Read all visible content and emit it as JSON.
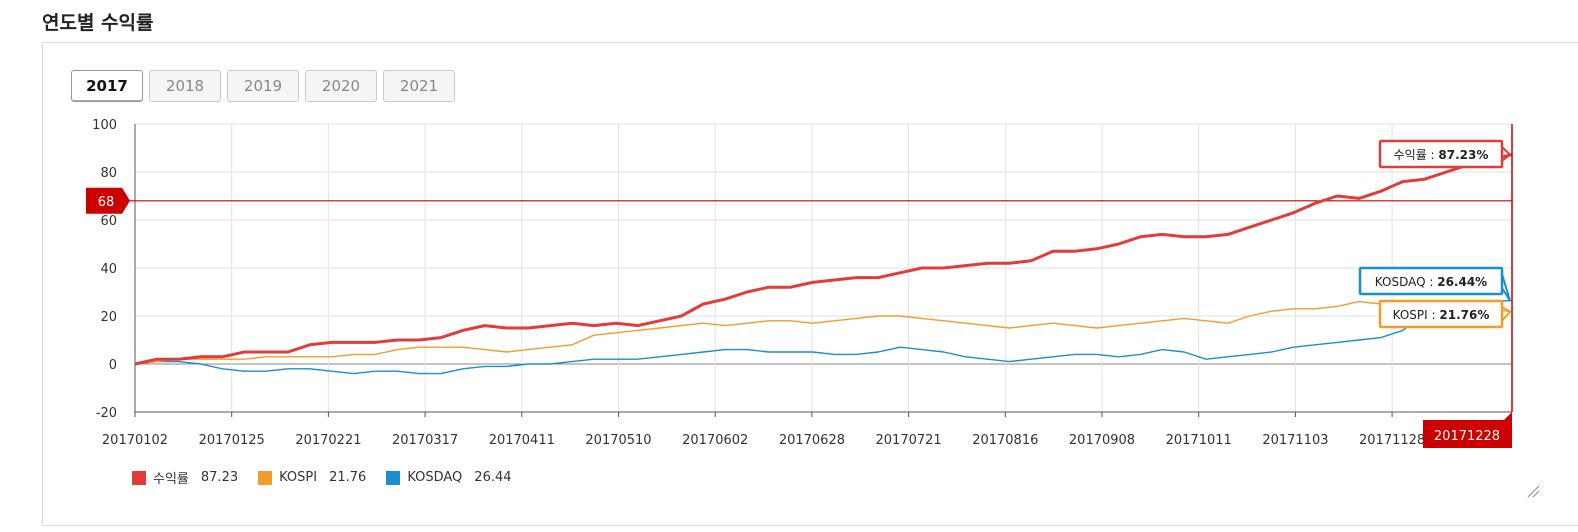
{
  "section_title": "연도별 수익률",
  "year_tabs": [
    {
      "label": "2017",
      "active": true
    },
    {
      "label": "2018",
      "active": false
    },
    {
      "label": "2019",
      "active": false
    },
    {
      "label": "2020",
      "active": false
    },
    {
      "label": "2021",
      "active": false
    }
  ],
  "chart_data": {
    "type": "line",
    "title": "",
    "xlabel": "",
    "ylabel": "",
    "ylim": [
      -20,
      100
    ],
    "y_ticks": [
      -20,
      0,
      20,
      40,
      60,
      80,
      100
    ],
    "x_tick_labels": [
      "20170102",
      "20170125",
      "20170221",
      "20170317",
      "20170411",
      "20170510",
      "20170602",
      "20170628",
      "20170721",
      "20170816",
      "20170908",
      "20171011",
      "20171103",
      "20171128"
    ],
    "grid": true,
    "legend_position": "bottom-left",
    "reference_line": {
      "value": 68,
      "label": "68",
      "color": "#cc0000"
    },
    "cursor": {
      "x_label": "20171228",
      "color": "#cc0000"
    },
    "series": [
      {
        "name": "수익률",
        "color": "#e03c3c",
        "final_value": "87.23",
        "tooltip": {
          "name": "수익률",
          "value": "87.23%"
        },
        "values": [
          0,
          2,
          2,
          3,
          3,
          5,
          5,
          5,
          8,
          9,
          9,
          9,
          10,
          10,
          11,
          14,
          16,
          15,
          15,
          16,
          17,
          16,
          17,
          16,
          18,
          20,
          25,
          27,
          30,
          32,
          32,
          34,
          35,
          36,
          36,
          38,
          40,
          40,
          41,
          42,
          42,
          43,
          47,
          47,
          48,
          50,
          53,
          54,
          53,
          53,
          54,
          57,
          60,
          63,
          67,
          70,
          69,
          72,
          76,
          77,
          80,
          83,
          85,
          87.23
        ]
      },
      {
        "name": "KOSPI",
        "color": "#f39c2b",
        "final_value": "21.76",
        "tooltip": {
          "name": "KOSPI",
          "value": "21.76%"
        },
        "values": [
          0,
          1,
          2,
          2,
          2,
          2,
          3,
          3,
          3,
          3,
          4,
          4,
          6,
          7,
          7,
          7,
          6,
          5,
          6,
          7,
          8,
          12,
          13,
          14,
          15,
          16,
          17,
          16,
          17,
          18,
          18,
          17,
          18,
          19,
          20,
          20,
          19,
          18,
          17,
          16,
          15,
          16,
          17,
          16,
          15,
          16,
          17,
          18,
          19,
          18,
          17,
          20,
          22,
          23,
          23,
          24,
          26,
          25,
          25,
          25,
          25,
          24,
          23,
          21.76
        ]
      },
      {
        "name": "KOSDAQ",
        "color": "#1a8fcf",
        "final_value": "26.44",
        "tooltip": {
          "name": "KOSDAQ",
          "value": "26.44%"
        },
        "values": [
          0,
          1,
          1,
          0,
          -2,
          -3,
          -3,
          -2,
          -2,
          -3,
          -4,
          -3,
          -3,
          -4,
          -4,
          -2,
          -1,
          -1,
          0,
          0,
          1,
          2,
          2,
          2,
          3,
          4,
          5,
          6,
          6,
          5,
          5,
          5,
          4,
          4,
          5,
          7,
          6,
          5,
          3,
          2,
          1,
          2,
          3,
          4,
          4,
          3,
          4,
          6,
          5,
          2,
          3,
          4,
          5,
          7,
          8,
          9,
          10,
          11,
          14,
          21,
          24,
          25,
          26,
          26.44
        ]
      }
    ]
  }
}
